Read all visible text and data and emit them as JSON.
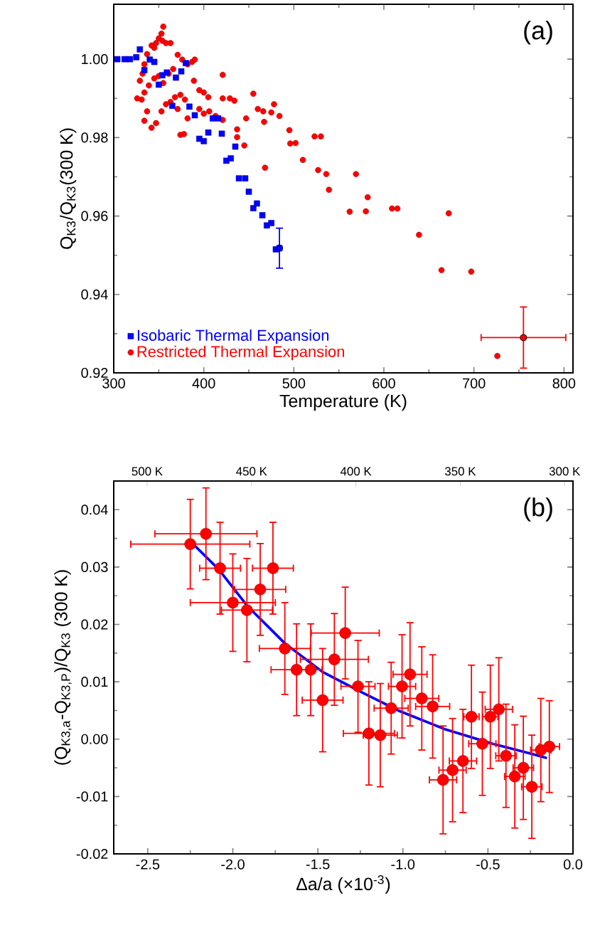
{
  "chart_data": [
    {
      "type": "scatter",
      "xlabel": "Temperature (K)",
      "ylabel": "Q$_{K3}$/Q$_{K3}$(300 K)",
      "annotations": [
        "(a)"
      ],
      "xlim": [
        300,
        810
      ],
      "ylim": [
        0.92,
        1.014
      ],
      "xticks": [
        300,
        400,
        500,
        600,
        700,
        800
      ],
      "yticks": [
        0.92,
        0.94,
        0.96,
        0.98,
        {
          "value": 1.0,
          "label": "1.00"
        }
      ],
      "legend": "bottom left",
      "series": [
        {
          "name": "Isobaric Thermal Expansion",
          "color": "#0000ff",
          "marker": "square",
          "x": [
            304,
            312,
            318,
            325,
            329,
            334,
            340,
            345,
            350,
            354,
            359,
            365,
            369,
            375,
            380,
            384,
            390,
            395,
            400,
            405,
            410,
            416,
            420,
            425,
            430,
            435,
            439,
            446,
            450,
            455,
            459,
            465,
            470,
            475,
            480,
            484
          ],
          "values": [
            1.0,
            1.0,
            1.0,
            1.0005,
            1.0025,
            0.9972,
            0.9999,
            0.9993,
            0.9935,
            0.9959,
            0.9966,
            0.9881,
            0.9953,
            0.9969,
            0.999,
            0.9879,
            0.9857,
            0.9797,
            0.9791,
            0.9813,
            0.9849,
            0.9849,
            0.981,
            0.9741,
            0.9747,
            0.9777,
            0.9696,
            0.9696,
            0.9662,
            0.962,
            0.9632,
            0.9602,
            0.9576,
            0.9582,
            0.9515,
            0.9518
          ],
          "errors": [
            null,
            null,
            null,
            null,
            null,
            null,
            null,
            null,
            null,
            null,
            null,
            null,
            null,
            null,
            null,
            null,
            null,
            null,
            null,
            null,
            null,
            null,
            null,
            null,
            null,
            null,
            null,
            null,
            null,
            null,
            null,
            null,
            null,
            null,
            null,
            0.0051
          ]
        },
        {
          "name": "Restricted Thermal Expansion",
          "color": "#ff0000",
          "marker": "circle",
          "x": [
            355,
            353,
            350,
            347,
            345,
            354,
            358,
            363,
            342,
            337,
            334,
            332,
            329,
            326,
            331,
            334,
            339,
            345,
            350,
            355,
            361,
            366,
            371,
            376,
            382,
            387,
            390,
            337,
            334,
            342,
            347,
            353,
            358,
            363,
            368,
            374,
            379,
            371,
            374,
            378,
            382,
            389,
            395,
            400,
            405,
            395,
            400,
            406,
            413,
            421,
            421,
            429,
            434,
            421,
            437,
            437,
            445,
            447,
            455,
            460,
            466,
            467,
            475,
            478,
            484,
            468,
            495,
            496,
            502,
            510,
            523,
            530,
            527,
            536,
            539,
            562,
            569,
            580,
            582,
            609,
            615,
            639,
            664,
            672,
            697,
            726
          ],
          "values": [
            1.0083,
            1.0065,
            1.0053,
            1.0041,
            1.0029,
            1.0047,
            1.0041,
            1.0041,
            1.0035,
            1.0013,
            0.9987,
            0.9963,
            0.9945,
            0.99,
            0.9897,
            0.9915,
            0.9933,
            0.9951,
            0.9957,
            0.9939,
            0.9963,
            0.9975,
            1.0011,
            0.9999,
            0.9987,
            0.9993,
            0.9999,
            0.9867,
            0.9843,
            0.9825,
            0.9837,
            0.9867,
            0.9885,
            0.9891,
            0.9903,
            0.9909,
            0.9897,
            0.9873,
            0.9807,
            0.9809,
            0.9849,
            0.9945,
            0.9921,
            0.9915,
            0.9903,
            0.9873,
            0.9861,
            0.9867,
            0.9855,
            0.996,
            0.99,
            0.99,
            0.9894,
            0.9845,
            0.9821,
            0.9801,
            0.978,
            0.9849,
            0.9912,
            0.9873,
            0.9867,
            0.984,
            0.9864,
            0.9885,
            0.9855,
            0.9723,
            0.9819,
            0.9785,
            0.9786,
            0.9743,
            0.9803,
            0.9803,
            0.9717,
            0.9707,
            0.9667,
            0.9611,
            0.9707,
            0.9612,
            0.9648,
            0.9619,
            0.9619,
            0.9552,
            0.9462,
            0.9607,
            0.9458,
            0.9243
          ]
        },
        {
          "color": "#ff0000",
          "marker": "circle",
          "x": [
            755
          ],
          "values": [
            0.929
          ],
          "errors": [
            0.0078
          ],
          "xerrors": [
            47
          ]
        }
      ]
    },
    {
      "type": "scatter",
      "xlabel": "Δa/a (×10$^{-3}$)",
      "ylabel": "(Q$_{K3,a}$-Q$_{K3,P}$)/Q$_{K3}$ (300 K)",
      "annotations": [
        "(b)"
      ],
      "x2lim": [
        516,
        296
      ],
      "x2ticks": [
        {
          "value": 500,
          "label": "500 K"
        },
        {
          "value": 450,
          "label": "450 K"
        },
        {
          "value": 400,
          "label": "400 K"
        },
        {
          "value": 350,
          "label": "350 K"
        },
        {
          "value": 300,
          "label": "300 K"
        }
      ],
      "xlim": [
        -2.7,
        0.0
      ],
      "ylim": [
        -0.02,
        0.045
      ],
      "xticks": [
        -2.5,
        {
          "value": -2.0,
          "label": "-2.0"
        },
        -1.5,
        {
          "value": -1.0,
          "label": "-1.0"
        },
        -0.5,
        {
          "value": 0.0,
          "label": "0.0"
        }
      ],
      "yticks": [
        -0.02,
        -0.01,
        {
          "value": 0.0,
          "label": "0.00"
        },
        0.01,
        0.02,
        0.03,
        0.04
      ],
      "series": [
        {
          "color": "#ff0000",
          "marker": "circle",
          "x": [
            -2.25,
            -2.158,
            -2.075,
            -2.0,
            -1.917,
            -1.839,
            -1.764,
            -1.694,
            -1.625,
            -1.542,
            -1.472,
            -1.403,
            -1.339,
            -1.264,
            -1.2,
            -1.133,
            -1.069,
            -1.005,
            -0.958,
            -0.889,
            -0.825,
            -0.764,
            -0.708,
            -0.647,
            -0.597,
            -0.533,
            -0.486,
            -0.436,
            -0.394,
            -0.342,
            -0.292,
            -0.242,
            -0.189,
            -0.139
          ],
          "values": [
            0.034,
            0.0358,
            0.0298,
            0.0238,
            0.0225,
            0.0261,
            0.0298,
            0.0158,
            0.0121,
            0.0121,
            0.0068,
            0.0139,
            0.0185,
            0.0092,
            0.001,
            0.0007,
            0.0054,
            0.0092,
            0.0113,
            0.0071,
            0.0057,
            -0.0071,
            -0.0054,
            -0.0038,
            0.0039,
            -0.0008,
            0.0039,
            0.0052,
            -0.0029,
            -0.0065,
            -0.005,
            -0.0083,
            -0.0019,
            -0.0013
          ],
          "errors": [
            0.0078,
            0.008,
            0.008,
            0.0085,
            0.009,
            0.008,
            0.008,
            0.008,
            0.008,
            0.008,
            0.009,
            0.008,
            0.008,
            0.008,
            0.009,
            0.009,
            0.008,
            0.009,
            0.009,
            0.009,
            0.009,
            0.0094,
            0.009,
            0.009,
            0.009,
            0.009,
            0.009,
            0.009,
            0.009,
            0.009,
            0.009,
            0.009,
            0.009,
            0.008
          ],
          "xerrors": [
            0.35,
            0.3,
            0.12,
            0.25,
            0.15,
            0.15,
            0.12,
            0.15,
            0.15,
            null,
            0.12,
            0.2,
            0.2,
            0.1,
            0.15,
            0.1,
            0.1,
            0.08,
            0.1,
            0.1,
            0.1,
            0.08,
            0.08,
            0.08,
            0.045,
            0.08,
            0.045,
            0.08,
            0.06,
            0.06,
            0.06,
            0.06,
            0.06,
            0.06
          ]
        },
        {
          "type": "line",
          "color": "#0000ff",
          "marker": "none",
          "x": [
            -2.25,
            -2.083,
            -1.917,
            -1.694,
            -1.472,
            -1.25,
            -1.028,
            -0.75,
            -0.472,
            -0.25,
            -0.153
          ],
          "values": [
            0.0345,
            0.0296,
            0.0233,
            0.0167,
            0.0117,
            0.0083,
            0.005,
            0.0017,
            -0.0008,
            -0.0025,
            -0.0033
          ]
        }
      ]
    }
  ]
}
